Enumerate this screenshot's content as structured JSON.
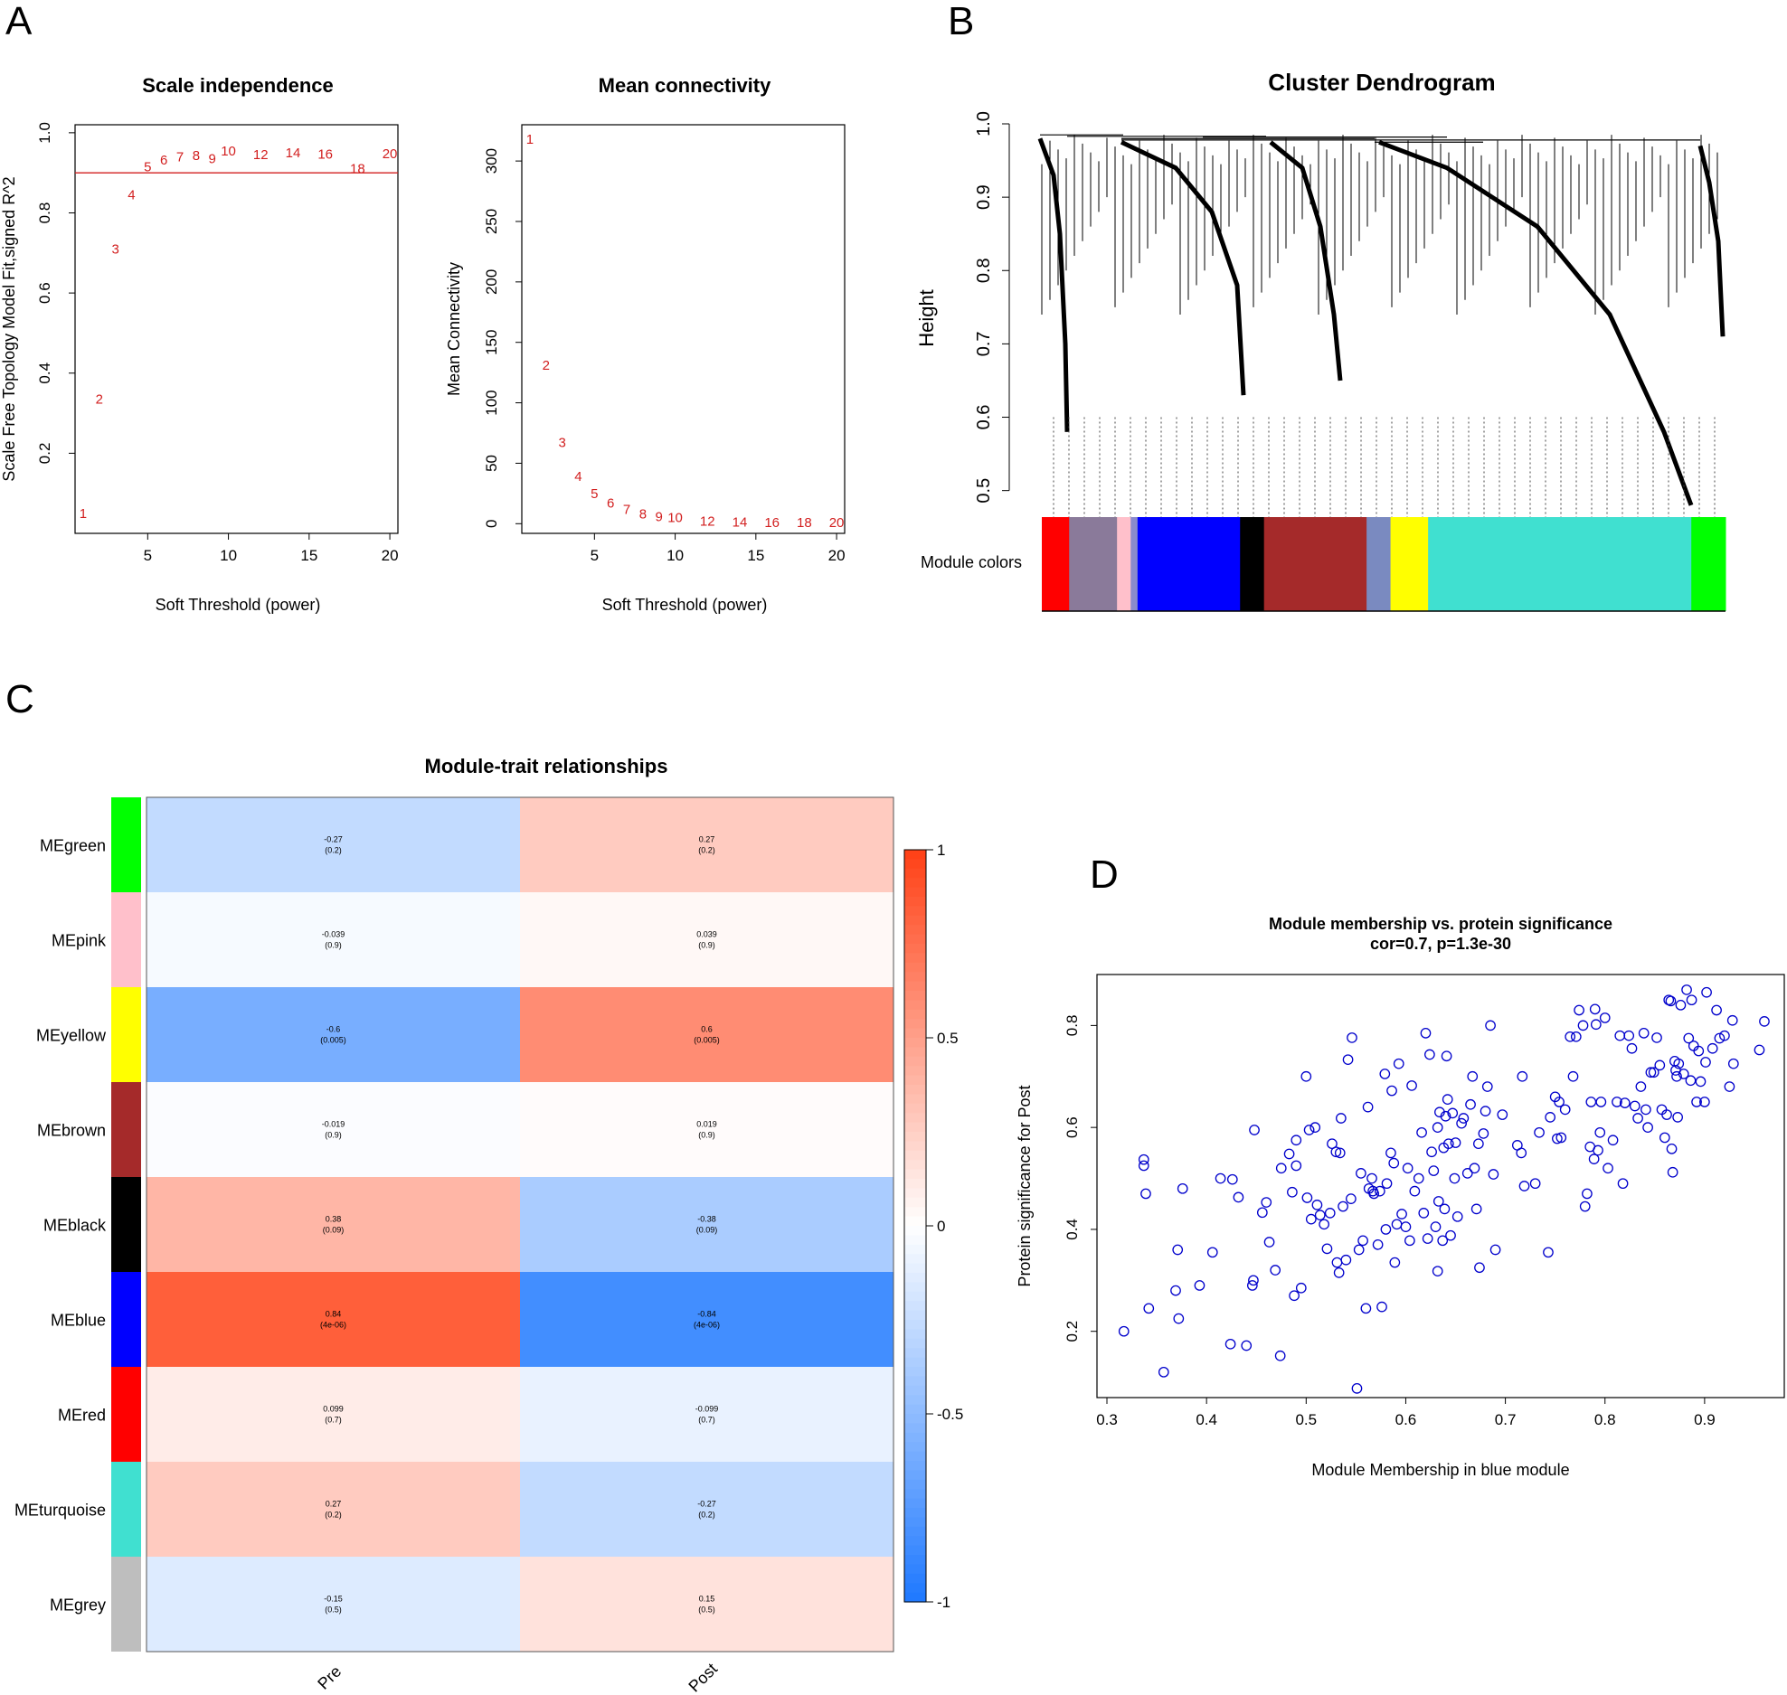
{
  "panel_letters": {
    "a": "A",
    "b": "B",
    "c": "C",
    "d": "D"
  },
  "chart_data": [
    {
      "id": "scale_independence",
      "type": "scatter",
      "title": "Scale independence",
      "xlabel": "Soft Threshold (power)",
      "ylabel": "Scale Free Topology Model Fit,signed R^2",
      "xlim": [
        0.5,
        20.5
      ],
      "ylim": [
        0.0,
        1.02
      ],
      "xticks": [
        5,
        10,
        15,
        20
      ],
      "yticks": [
        0.2,
        0.4,
        0.6,
        0.8,
        1.0
      ],
      "ytick_labels": [
        "0.2",
        "0.4",
        "0.6",
        "0.8",
        "1.0"
      ],
      "hline": 0.9,
      "points": [
        {
          "x": 1,
          "y": 0.05,
          "label": "1"
        },
        {
          "x": 2,
          "y": 0.335,
          "label": "2"
        },
        {
          "x": 3,
          "y": 0.71,
          "label": "3"
        },
        {
          "x": 4,
          "y": 0.845,
          "label": "4"
        },
        {
          "x": 5,
          "y": 0.915,
          "label": "5"
        },
        {
          "x": 6,
          "y": 0.932,
          "label": "6"
        },
        {
          "x": 7,
          "y": 0.94,
          "label": "7"
        },
        {
          "x": 8,
          "y": 0.943,
          "label": "8"
        },
        {
          "x": 9,
          "y": 0.935,
          "label": "9"
        },
        {
          "x": 10,
          "y": 0.955,
          "label": "10"
        },
        {
          "x": 12,
          "y": 0.945,
          "label": "12"
        },
        {
          "x": 14,
          "y": 0.95,
          "label": "14"
        },
        {
          "x": 16,
          "y": 0.947,
          "label": "16"
        },
        {
          "x": 18,
          "y": 0.91,
          "label": "18"
        },
        {
          "x": 20,
          "y": 0.948,
          "label": "20"
        }
      ]
    },
    {
      "id": "mean_connectivity",
      "type": "scatter",
      "title": "Mean connectivity",
      "xlabel": "Soft Threshold (power)",
      "ylabel": "Mean Connectivity",
      "xlim": [
        0.5,
        20.5
      ],
      "ylim": [
        -8,
        330
      ],
      "xticks": [
        5,
        10,
        15,
        20
      ],
      "yticks": [
        0,
        50,
        100,
        150,
        200,
        250,
        300
      ],
      "points": [
        {
          "x": 1,
          "y": 318,
          "label": "1"
        },
        {
          "x": 2,
          "y": 131,
          "label": "2"
        },
        {
          "x": 3,
          "y": 67,
          "label": "3"
        },
        {
          "x": 4,
          "y": 39,
          "label": "4"
        },
        {
          "x": 5,
          "y": 25,
          "label": "5"
        },
        {
          "x": 6,
          "y": 17,
          "label": "6"
        },
        {
          "x": 7,
          "y": 12,
          "label": "7"
        },
        {
          "x": 8,
          "y": 8,
          "label": "8"
        },
        {
          "x": 9,
          "y": 6,
          "label": "9"
        },
        {
          "x": 10,
          "y": 5,
          "label": "10"
        },
        {
          "x": 12,
          "y": 2,
          "label": "12"
        },
        {
          "x": 14,
          "y": 1.5,
          "label": "14"
        },
        {
          "x": 16,
          "y": 1,
          "label": "16"
        },
        {
          "x": 18,
          "y": 1,
          "label": "18"
        },
        {
          "x": 20,
          "y": 0.8,
          "label": "20"
        }
      ]
    },
    {
      "id": "cluster_dendrogram",
      "type": "dendrogram",
      "title": "Cluster Dendrogram",
      "ylabel": "Height",
      "ylim": [
        0.47,
        1.0
      ],
      "yticks": [
        0.5,
        0.6,
        0.7,
        0.8,
        0.9,
        1.0
      ],
      "ytick_labels": [
        "0.5",
        "0.6",
        "0.7",
        "0.8",
        "0.9",
        "1.0"
      ],
      "module_colors_label": "Module colors",
      "module_color_blocks": [
        {
          "color": "#ff0000",
          "fraction": 0.04
        },
        {
          "color": "#8a7a9a",
          "fraction": 0.07
        },
        {
          "color": "#ffc0cb",
          "fraction": 0.02
        },
        {
          "color": "#8a8acc",
          "fraction": 0.01
        },
        {
          "color": "#0000ff",
          "fraction": 0.15
        },
        {
          "color": "#000000",
          "fraction": 0.035
        },
        {
          "color": "#a52a2a",
          "fraction": 0.15
        },
        {
          "color": "#7a8ac0",
          "fraction": 0.035
        },
        {
          "color": "#ffff00",
          "fraction": 0.055
        },
        {
          "color": "#40e0d0",
          "fraction": 0.385
        },
        {
          "color": "#00ff00",
          "fraction": 0.05
        }
      ]
    },
    {
      "id": "module_trait_relationships",
      "type": "heatmap",
      "title": "Module-trait relationships",
      "columns": [
        "Pre",
        "Post"
      ],
      "rows": [
        {
          "module": "MEgreen",
          "color": "#00ff00",
          "pre": -0.27,
          "pre_label": "-0.27",
          "pre_p": "(0.2)",
          "post": 0.27,
          "post_label": "0.27",
          "post_p": "(0.2)"
        },
        {
          "module": "MEpink",
          "color": "#ffc0cb",
          "pre": -0.039,
          "pre_label": "-0.039",
          "pre_p": "(0.9)",
          "post": 0.039,
          "post_label": "0.039",
          "post_p": "(0.9)"
        },
        {
          "module": "MEyellow",
          "color": "#ffff00",
          "pre": -0.6,
          "pre_label": "-0.6",
          "pre_p": "(0.005)",
          "post": 0.6,
          "post_label": "0.6",
          "post_p": "(0.005)"
        },
        {
          "module": "MEbrown",
          "color": "#a52a2a",
          "pre": -0.019,
          "pre_label": "-0.019",
          "pre_p": "(0.9)",
          "post": 0.019,
          "post_label": "0.019",
          "post_p": "(0.9)"
        },
        {
          "module": "MEblack",
          "color": "#000000",
          "pre": 0.38,
          "pre_label": "0.38",
          "pre_p": "(0.09)",
          "post": -0.38,
          "post_label": "-0.38",
          "post_p": "(0.09)"
        },
        {
          "module": "MEblue",
          "color": "#0000ff",
          "pre": 0.84,
          "pre_label": "0.84",
          "pre_p": "(4e-06)",
          "post": -0.84,
          "post_label": "-0.84",
          "post_p": "(4e-06)"
        },
        {
          "module": "MEred",
          "color": "#ff0000",
          "pre": 0.099,
          "pre_label": "0.099",
          "pre_p": "(0.7)",
          "post": -0.099,
          "post_label": "-0.099",
          "post_p": "(0.7)"
        },
        {
          "module": "MEturquoise",
          "color": "#40e0d0",
          "pre": 0.27,
          "pre_label": "0.27",
          "pre_p": "(0.2)",
          "post": -0.27,
          "post_label": "-0.27",
          "post_p": "(0.2)"
        },
        {
          "module": "MEgrey",
          "color": "#bebebe",
          "pre": -0.15,
          "pre_label": "-0.15",
          "pre_p": "(0.5)",
          "post": 0.15,
          "post_label": "0.15",
          "post_p": "(0.5)"
        }
      ],
      "colorbar": {
        "range": [
          -1,
          1
        ],
        "ticks": [
          1,
          0.5,
          0,
          -0.5,
          -1
        ],
        "tick_labels": [
          "1",
          "0.5",
          "0",
          "-0.5",
          "-1"
        ],
        "negative_color": "#1e78ff",
        "neutral_color": "#ffffff",
        "positive_color": "#ff4015"
      }
    },
    {
      "id": "module_membership_scatter",
      "type": "scatter",
      "title": "Module membership vs. protein significance",
      "subtitle": "cor=0.7, p=1.3e-30",
      "xlabel": "Module Membership in blue module",
      "ylabel": "Protein significance for Post",
      "xlim": [
        0.29,
        0.98
      ],
      "ylim": [
        0.07,
        0.9
      ],
      "xticks": [
        0.3,
        0.4,
        0.5,
        0.6,
        0.7,
        0.8,
        0.9
      ],
      "xtick_labels": [
        "0.3",
        "0.4",
        "0.5",
        "0.6",
        "0.7",
        "0.8",
        "0.9"
      ],
      "yticks": [
        0.2,
        0.4,
        0.6,
        0.8
      ],
      "ytick_labels": [
        "0.2",
        "0.4",
        "0.6",
        "0.8"
      ],
      "point_color": "#0000cc",
      "points": [
        [
          0.317,
          0.2
        ],
        [
          0.337,
          0.537
        ],
        [
          0.337,
          0.525
        ],
        [
          0.339,
          0.47
        ],
        [
          0.342,
          0.245
        ],
        [
          0.357,
          0.12
        ],
        [
          0.369,
          0.28
        ],
        [
          0.371,
          0.36
        ],
        [
          0.372,
          0.225
        ],
        [
          0.376,
          0.48
        ],
        [
          0.393,
          0.29
        ],
        [
          0.406,
          0.355
        ],
        [
          0.414,
          0.5
        ],
        [
          0.424,
          0.175
        ],
        [
          0.426,
          0.498
        ],
        [
          0.432,
          0.463
        ],
        [
          0.44,
          0.172
        ],
        [
          0.446,
          0.29
        ],
        [
          0.447,
          0.3
        ],
        [
          0.448,
          0.595
        ],
        [
          0.456,
          0.433
        ],
        [
          0.46,
          0.453
        ],
        [
          0.463,
          0.375
        ],
        [
          0.469,
          0.32
        ],
        [
          0.474,
          0.152
        ],
        [
          0.475,
          0.52
        ],
        [
          0.483,
          0.548
        ],
        [
          0.486,
          0.473
        ],
        [
          0.488,
          0.27
        ],
        [
          0.49,
          0.525
        ],
        [
          0.49,
          0.575
        ],
        [
          0.495,
          0.285
        ],
        [
          0.5,
          0.7
        ],
        [
          0.501,
          0.462
        ],
        [
          0.503,
          0.595
        ],
        [
          0.505,
          0.42
        ],
        [
          0.509,
          0.6
        ],
        [
          0.511,
          0.448
        ],
        [
          0.514,
          0.428
        ],
        [
          0.518,
          0.41
        ],
        [
          0.521,
          0.362
        ],
        [
          0.524,
          0.432
        ],
        [
          0.526,
          0.568
        ],
        [
          0.53,
          0.552
        ],
        [
          0.531,
          0.335
        ],
        [
          0.533,
          0.315
        ],
        [
          0.534,
          0.55
        ],
        [
          0.535,
          0.618
        ],
        [
          0.537,
          0.445
        ],
        [
          0.54,
          0.34
        ],
        [
          0.542,
          0.733
        ],
        [
          0.545,
          0.46
        ],
        [
          0.546,
          0.776
        ],
        [
          0.551,
          0.088
        ],
        [
          0.553,
          0.36
        ],
        [
          0.555,
          0.51
        ],
        [
          0.557,
          0.378
        ],
        [
          0.56,
          0.245
        ],
        [
          0.562,
          0.64
        ],
        [
          0.563,
          0.48
        ],
        [
          0.566,
          0.5
        ],
        [
          0.567,
          0.475
        ],
        [
          0.568,
          0.47
        ],
        [
          0.572,
          0.37
        ],
        [
          0.574,
          0.475
        ],
        [
          0.576,
          0.248
        ],
        [
          0.579,
          0.705
        ],
        [
          0.58,
          0.4
        ],
        [
          0.581,
          0.49
        ],
        [
          0.585,
          0.55
        ],
        [
          0.586,
          0.672
        ],
        [
          0.588,
          0.53
        ],
        [
          0.589,
          0.335
        ],
        [
          0.591,
          0.41
        ],
        [
          0.593,
          0.725
        ],
        [
          0.596,
          0.43
        ],
        [
          0.6,
          0.405
        ],
        [
          0.602,
          0.52
        ],
        [
          0.604,
          0.378
        ],
        [
          0.606,
          0.682
        ],
        [
          0.609,
          0.475
        ],
        [
          0.613,
          0.5
        ],
        [
          0.616,
          0.59
        ],
        [
          0.618,
          0.432
        ],
        [
          0.62,
          0.785
        ],
        [
          0.622,
          0.382
        ],
        [
          0.624,
          0.743
        ],
        [
          0.626,
          0.552
        ],
        [
          0.628,
          0.515
        ],
        [
          0.63,
          0.405
        ],
        [
          0.632,
          0.318
        ],
        [
          0.632,
          0.6
        ],
        [
          0.633,
          0.455
        ],
        [
          0.634,
          0.63
        ],
        [
          0.637,
          0.378
        ],
        [
          0.638,
          0.56
        ],
        [
          0.639,
          0.44
        ],
        [
          0.64,
          0.622
        ],
        [
          0.641,
          0.74
        ],
        [
          0.642,
          0.655
        ],
        [
          0.643,
          0.568
        ],
        [
          0.645,
          0.388
        ],
        [
          0.647,
          0.628
        ],
        [
          0.649,
          0.5
        ],
        [
          0.65,
          0.57
        ],
        [
          0.652,
          0.425
        ],
        [
          0.656,
          0.608
        ],
        [
          0.658,
          0.618
        ],
        [
          0.662,
          0.51
        ],
        [
          0.665,
          0.645
        ],
        [
          0.667,
          0.7
        ],
        [
          0.669,
          0.52
        ],
        [
          0.671,
          0.44
        ],
        [
          0.673,
          0.568
        ],
        [
          0.674,
          0.325
        ],
        [
          0.678,
          0.588
        ],
        [
          0.68,
          0.632
        ],
        [
          0.682,
          0.68
        ],
        [
          0.685,
          0.8
        ],
        [
          0.688,
          0.508
        ],
        [
          0.69,
          0.36
        ],
        [
          0.697,
          0.625
        ],
        [
          0.712,
          0.565
        ],
        [
          0.716,
          0.55
        ],
        [
          0.717,
          0.7
        ],
        [
          0.719,
          0.485
        ],
        [
          0.73,
          0.49
        ],
        [
          0.734,
          0.59
        ],
        [
          0.743,
          0.355
        ],
        [
          0.745,
          0.62
        ],
        [
          0.75,
          0.66
        ],
        [
          0.752,
          0.578
        ],
        [
          0.754,
          0.65
        ],
        [
          0.756,
          0.58
        ],
        [
          0.76,
          0.635
        ],
        [
          0.765,
          0.778
        ],
        [
          0.768,
          0.7
        ],
        [
          0.771,
          0.778
        ],
        [
          0.774,
          0.83
        ],
        [
          0.778,
          0.8
        ],
        [
          0.78,
          0.445
        ],
        [
          0.782,
          0.47
        ],
        [
          0.785,
          0.562
        ],
        [
          0.786,
          0.65
        ],
        [
          0.789,
          0.538
        ],
        [
          0.79,
          0.832
        ],
        [
          0.791,
          0.802
        ],
        [
          0.793,
          0.555
        ],
        [
          0.795,
          0.59
        ],
        [
          0.796,
          0.65
        ],
        [
          0.8,
          0.815
        ],
        [
          0.803,
          0.52
        ],
        [
          0.808,
          0.575
        ],
        [
          0.812,
          0.65
        ],
        [
          0.815,
          0.78
        ],
        [
          0.818,
          0.49
        ],
        [
          0.82,
          0.648
        ],
        [
          0.824,
          0.78
        ],
        [
          0.827,
          0.755
        ],
        [
          0.83,
          0.642
        ],
        [
          0.833,
          0.618
        ],
        [
          0.836,
          0.68
        ],
        [
          0.839,
          0.785
        ],
        [
          0.841,
          0.635
        ],
        [
          0.843,
          0.6
        ],
        [
          0.846,
          0.708
        ],
        [
          0.849,
          0.708
        ],
        [
          0.852,
          0.776
        ],
        [
          0.855,
          0.722
        ],
        [
          0.857,
          0.635
        ],
        [
          0.86,
          0.58
        ],
        [
          0.862,
          0.625
        ],
        [
          0.864,
          0.85
        ],
        [
          0.866,
          0.848
        ],
        [
          0.867,
          0.558
        ],
        [
          0.868,
          0.512
        ],
        [
          0.87,
          0.73
        ],
        [
          0.871,
          0.712
        ],
        [
          0.872,
          0.7
        ],
        [
          0.873,
          0.62
        ],
        [
          0.874,
          0.725
        ],
        [
          0.876,
          0.84
        ],
        [
          0.879,
          0.705
        ],
        [
          0.882,
          0.87
        ],
        [
          0.884,
          0.775
        ],
        [
          0.886,
          0.692
        ],
        [
          0.887,
          0.85
        ],
        [
          0.889,
          0.76
        ],
        [
          0.892,
          0.65
        ],
        [
          0.894,
          0.75
        ],
        [
          0.896,
          0.69
        ],
        [
          0.9,
          0.65
        ],
        [
          0.901,
          0.728
        ],
        [
          0.902,
          0.865
        ],
        [
          0.908,
          0.755
        ],
        [
          0.912,
          0.83
        ],
        [
          0.915,
          0.775
        ],
        [
          0.92,
          0.78
        ],
        [
          0.925,
          0.68
        ],
        [
          0.928,
          0.81
        ],
        [
          0.929,
          0.725
        ],
        [
          0.955,
          0.752
        ],
        [
          0.96,
          0.808
        ]
      ]
    }
  ]
}
